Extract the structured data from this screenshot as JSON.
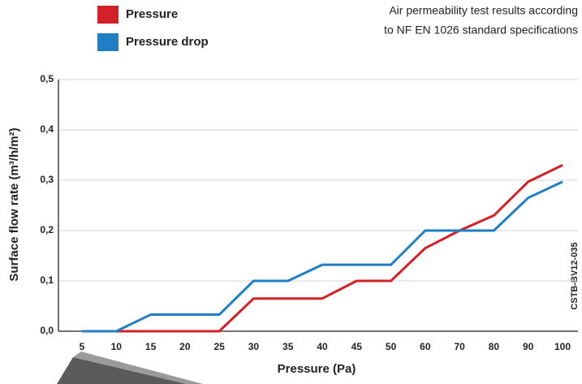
{
  "chart_data": {
    "type": "line",
    "annotation": [
      "Air permeability test results according",
      "to NF EN 1026 standard specifications"
    ],
    "watermark": "CSTB-BV12-035",
    "x_label": "Pressure (Pa)",
    "y_label": "Surface flow rate (m³/h/m²)",
    "categories": [
      "5",
      "10",
      "15",
      "20",
      "25",
      "30",
      "35",
      "40",
      "45",
      "50",
      "60",
      "70",
      "80",
      "90",
      "100"
    ],
    "series": [
      {
        "name": "Pressure",
        "color": "#d42027",
        "values": [
          0,
          0,
          0,
          0,
          0,
          0.065,
          0.065,
          0.065,
          0.1,
          0.1,
          0.165,
          0.2,
          0.23,
          0.297,
          0.33
        ]
      },
      {
        "name": "Pressure drop",
        "color": "#1f7fc2",
        "values": [
          0,
          0,
          0.033,
          0.033,
          0.033,
          0.1,
          0.1,
          0.132,
          0.132,
          0.132,
          0.2,
          0.2,
          0.2,
          0.265,
          0.297
        ]
      }
    ],
    "ylim": [
      0,
      0.5
    ],
    "yticks": [
      {
        "value": 0,
        "label": "0,0"
      },
      {
        "value": 0.1,
        "label": "0,1"
      },
      {
        "value": 0.2,
        "label": "0,2"
      },
      {
        "value": 0.3,
        "label": "0,3"
      },
      {
        "value": 0.4,
        "label": "0,4"
      },
      {
        "value": 0.5,
        "label": "0,5"
      }
    ],
    "grid": true
  }
}
